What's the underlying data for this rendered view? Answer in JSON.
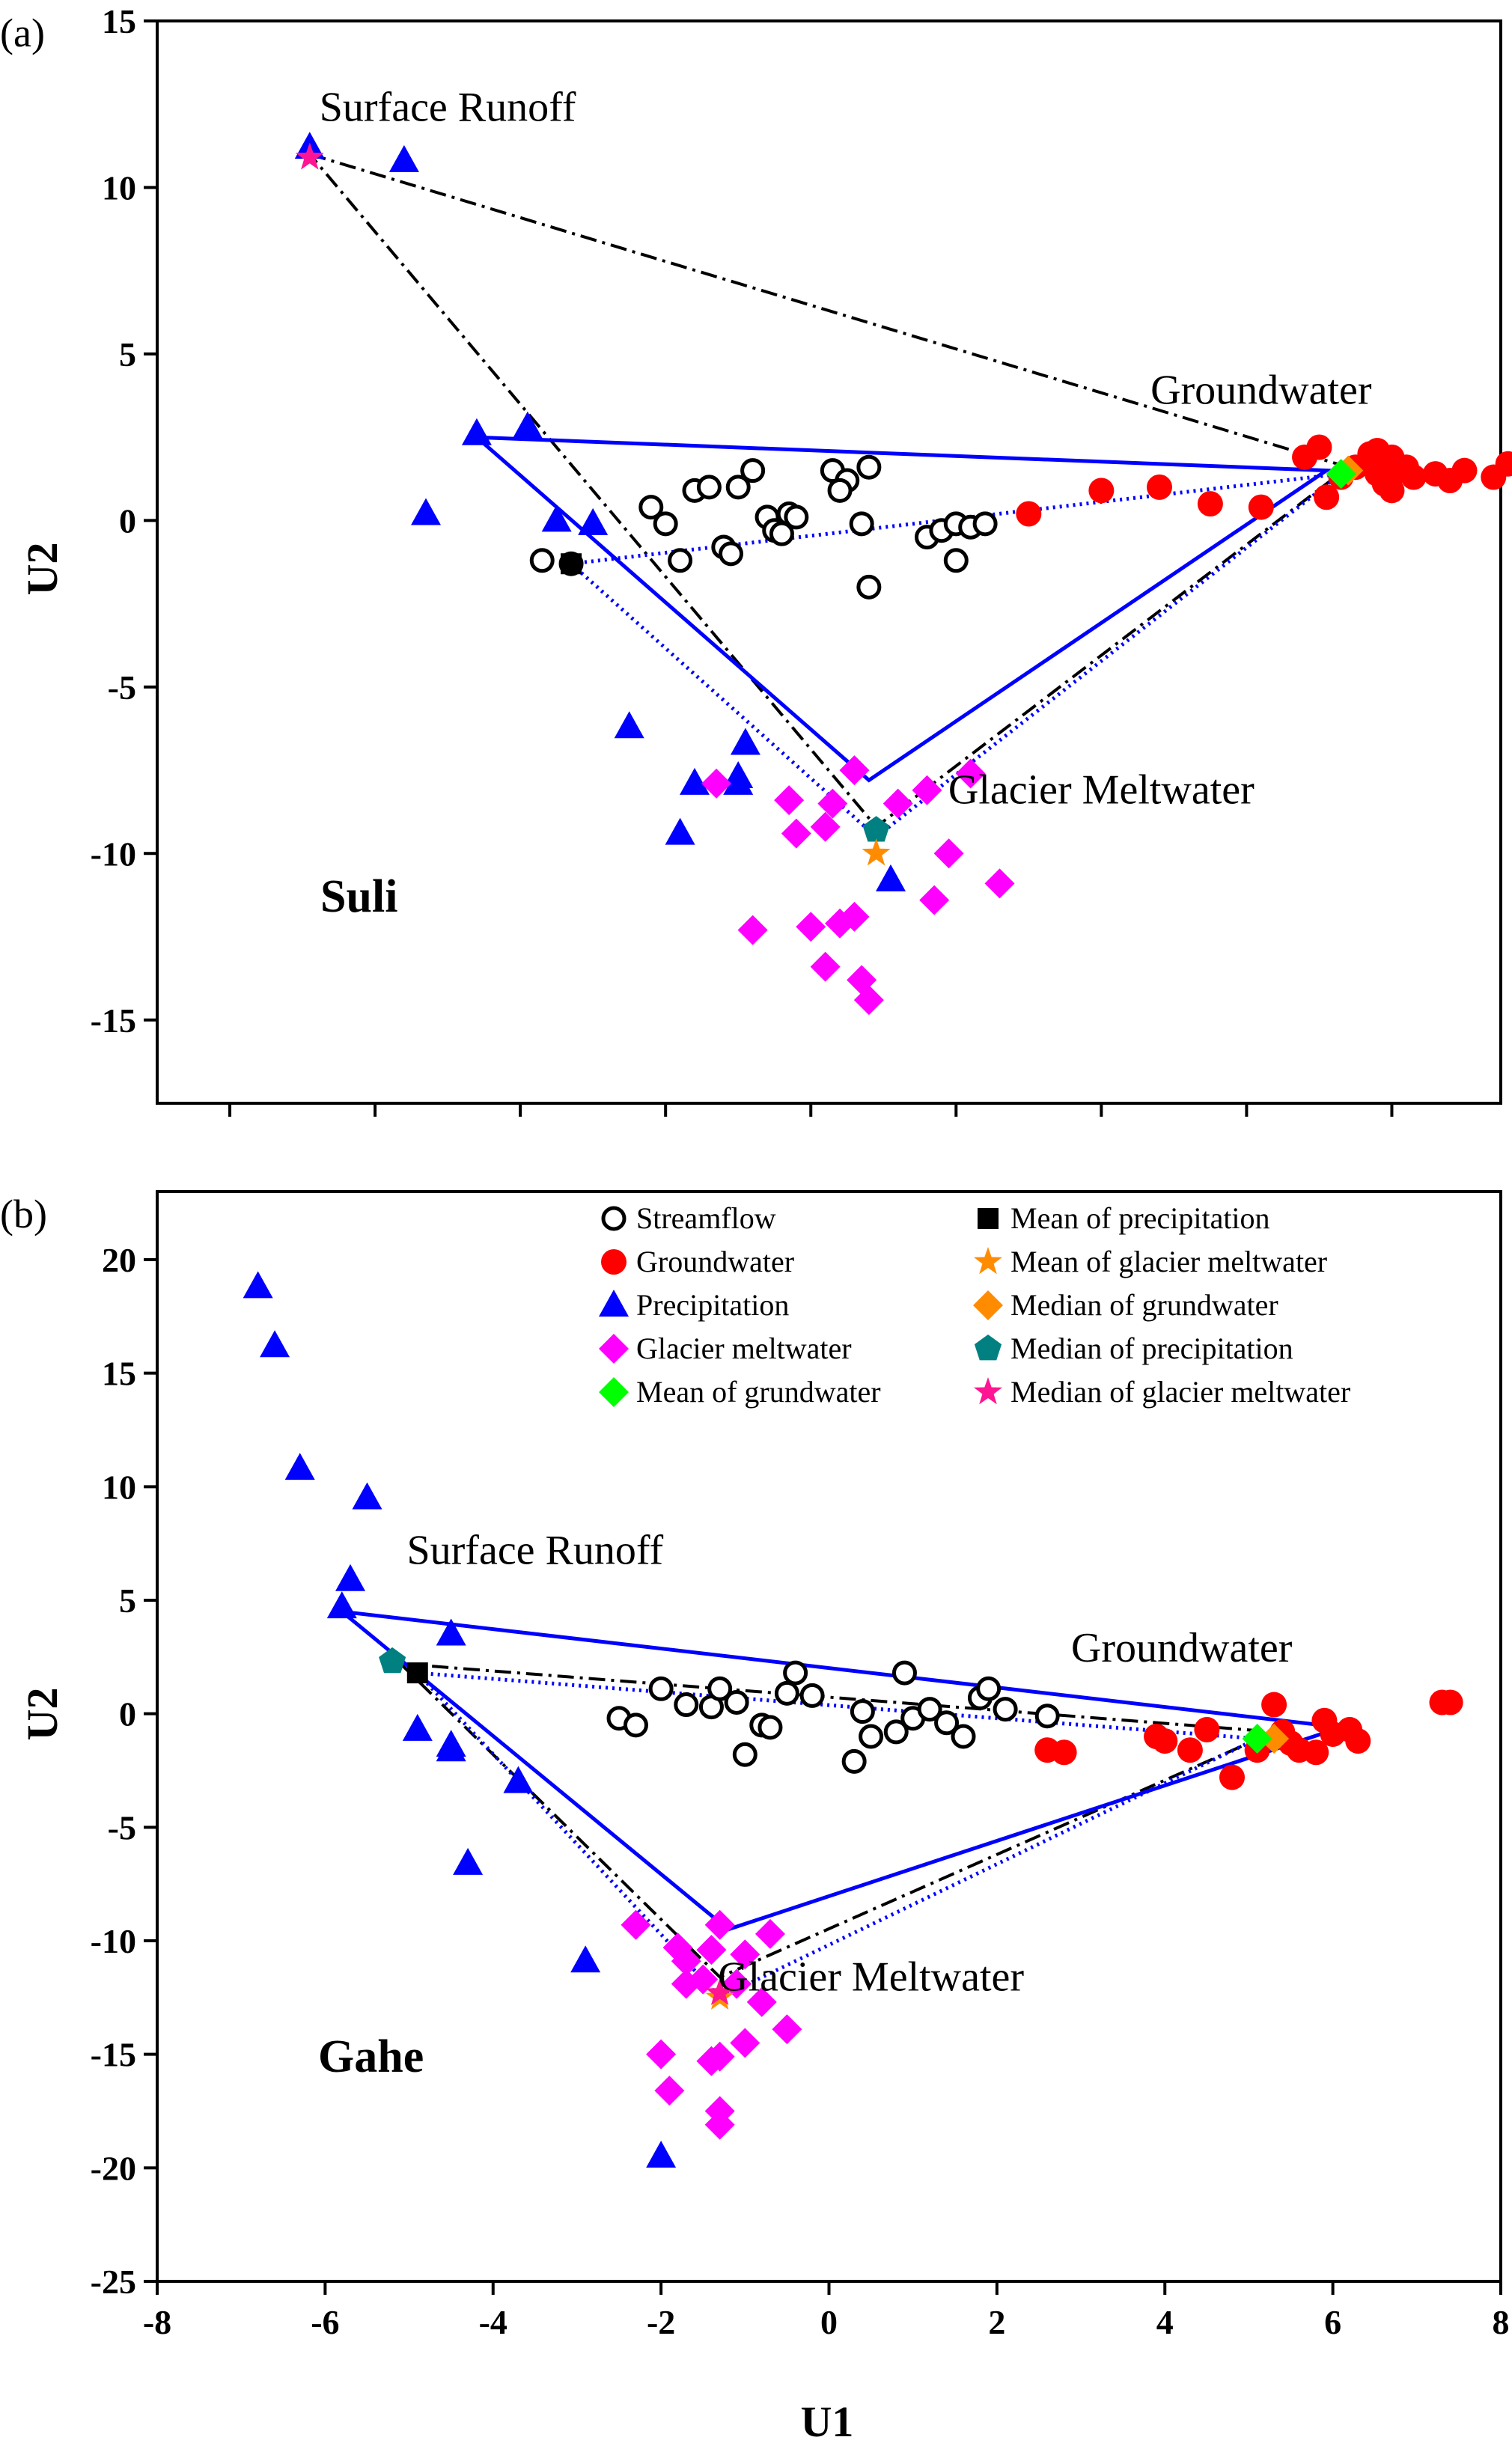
{
  "legend": [
    {
      "key": "streamflow",
      "label": "Streamflow",
      "marker": "circle-open",
      "color": "#000000"
    },
    {
      "key": "groundwater",
      "label": "Groundwater",
      "marker": "circle",
      "color": "#ff0000"
    },
    {
      "key": "precipitation",
      "label": "Precipitation",
      "marker": "triangle",
      "color": "#0000ff"
    },
    {
      "key": "glacier",
      "label": "Glacier meltwater",
      "marker": "diamond",
      "color": "#ff00ff"
    },
    {
      "key": "mean_gw",
      "label": "Mean of grundwater",
      "marker": "diamond",
      "color": "#00ff00"
    },
    {
      "key": "mean_precip",
      "label": "Mean of precipitation",
      "marker": "square",
      "color": "#000000"
    },
    {
      "key": "mean_glacier",
      "label": "Mean of glacier meltwater",
      "marker": "star",
      "color": "#ff8c00"
    },
    {
      "key": "median_gw",
      "label": "Median of grundwater",
      "marker": "diamond",
      "color": "#ff8c00"
    },
    {
      "key": "median_precip",
      "label": "Median of precipitation",
      "marker": "pentagon",
      "color": "#008080"
    },
    {
      "key": "median_glacier",
      "label": "Median of glacier meltwater",
      "marker": "star",
      "color": "#ff1493"
    }
  ],
  "chart_data": [
    {
      "type": "scatter",
      "panel": "(a)",
      "site_label": "Suli",
      "xlabel": "",
      "ylabel": "U2",
      "xlim": [
        -9,
        9.5
      ],
      "ylim": [
        -17.5,
        15
      ],
      "xticks": [],
      "yticks": [
        -15,
        -10,
        -5,
        0,
        5,
        10,
        15
      ],
      "annotations": [
        {
          "text": "Surface Runoff",
          "x": -5,
          "y": 12
        },
        {
          "text": "Groundwater",
          "x": 6.2,
          "y": 3.5
        },
        {
          "text": "Glacier Meltwater",
          "x": 4,
          "y": -8.5
        }
      ],
      "series": {
        "streamflow": [
          [
            -3.7,
            -1.2
          ],
          [
            -3.3,
            -1.3
          ],
          [
            -2.2,
            0.4
          ],
          [
            -2.0,
            -0.1
          ],
          [
            -1.8,
            -1.2
          ],
          [
            -1.6,
            0.9
          ],
          [
            -1.4,
            1.0
          ],
          [
            -1.2,
            -0.8
          ],
          [
            -1.0,
            1.0
          ],
          [
            -0.8,
            1.5
          ],
          [
            -0.6,
            0.1
          ],
          [
            -0.5,
            -0.3
          ],
          [
            -0.3,
            0.2
          ],
          [
            -0.2,
            0.1
          ],
          [
            0.3,
            1.5
          ],
          [
            0.5,
            1.2
          ],
          [
            0.8,
            1.6
          ],
          [
            0.7,
            -0.1
          ],
          [
            0.8,
            -2.0
          ],
          [
            1.6,
            -0.5
          ],
          [
            1.8,
            -0.3
          ],
          [
            2.0,
            -0.1
          ],
          [
            2.0,
            -1.2
          ],
          [
            2.2,
            -0.2
          ],
          [
            2.4,
            -0.1
          ],
          [
            -1.1,
            -1.0
          ],
          [
            -0.4,
            -0.4
          ],
          [
            0.4,
            0.9
          ]
        ],
        "groundwater": [
          [
            3.0,
            0.2
          ],
          [
            4.0,
            0.9
          ],
          [
            4.8,
            1.0
          ],
          [
            5.5,
            0.5
          ],
          [
            6.2,
            0.4
          ],
          [
            6.8,
            1.9
          ],
          [
            7.0,
            2.2
          ],
          [
            7.1,
            0.7
          ],
          [
            7.3,
            1.3
          ],
          [
            7.5,
            1.6
          ],
          [
            7.7,
            2.0
          ],
          [
            7.8,
            1.4
          ],
          [
            7.9,
            1.1
          ],
          [
            8.0,
            0.9
          ],
          [
            8.1,
            1.5
          ],
          [
            8.2,
            1.6
          ],
          [
            8.3,
            1.3
          ],
          [
            8.6,
            1.4
          ],
          [
            8.8,
            1.2
          ],
          [
            9.0,
            1.5
          ],
          [
            9.4,
            1.3
          ],
          [
            9.6,
            1.7
          ],
          [
            7.8,
            2.1
          ],
          [
            8.0,
            1.9
          ]
        ],
        "precipitation": [
          [
            -6.9,
            11.2
          ],
          [
            -5.6,
            10.8
          ],
          [
            -4.6,
            2.6
          ],
          [
            -3.9,
            2.8
          ],
          [
            -5.3,
            0.2
          ],
          [
            -3.5,
            0.0
          ],
          [
            -3.0,
            -0.1
          ],
          [
            -2.5,
            -6.2
          ],
          [
            -1.8,
            -9.4
          ],
          [
            -1.6,
            -7.9
          ],
          [
            -1.0,
            -7.7
          ],
          [
            -1.0,
            -7.9
          ],
          [
            -0.9,
            -6.7
          ],
          [
            1.1,
            -10.8
          ]
        ],
        "glacier": [
          [
            -1.3,
            -7.9
          ],
          [
            -0.3,
            -8.4
          ],
          [
            -0.2,
            -9.4
          ],
          [
            0.0,
            -12.2
          ],
          [
            0.2,
            -9.2
          ],
          [
            0.3,
            -8.5
          ],
          [
            0.6,
            -7.5
          ],
          [
            0.6,
            -11.9
          ],
          [
            0.7,
            -13.8
          ],
          [
            0.8,
            -14.4
          ],
          [
            1.2,
            -8.5
          ],
          [
            1.6,
            -8.1
          ],
          [
            1.7,
            -11.4
          ],
          [
            1.9,
            -10.0
          ],
          [
            2.2,
            -7.6
          ],
          [
            2.6,
            -10.9
          ],
          [
            -0.8,
            -12.3
          ],
          [
            0.2,
            -13.4
          ],
          [
            0.4,
            -12.1
          ]
        ],
        "mean_gw": [
          [
            7.3,
            1.4
          ]
        ],
        "mean_precip": [
          [
            -3.3,
            -1.3
          ]
        ],
        "mean_glacier": [
          [
            0.9,
            -10.0
          ]
        ],
        "median_gw": [
          [
            7.4,
            1.5
          ]
        ],
        "median_precip": [
          [
            0.9,
            -9.3
          ]
        ],
        "median_glacier": [
          [
            -6.9,
            10.9
          ]
        ]
      },
      "triangles": {
        "solid_blue": [
          [
            -4.6,
            2.5
          ],
          [
            7.1,
            1.5
          ],
          [
            0.8,
            -7.8
          ]
        ],
        "dotted_blue": [
          [
            -3.3,
            -1.3
          ],
          [
            7.3,
            1.4
          ],
          [
            0.9,
            -9.5
          ]
        ],
        "dashdot_black": [
          [
            -6.9,
            11.0
          ],
          [
            7.4,
            1.6
          ],
          [
            0.9,
            -9.2
          ]
        ]
      }
    },
    {
      "type": "scatter",
      "panel": "(b)",
      "site_label": "Gahe",
      "xlabel": "U1",
      "ylabel": "U2",
      "xlim": [
        -8,
        8
      ],
      "ylim": [
        -25,
        23
      ],
      "xticks": [
        -8,
        -6,
        -4,
        -2,
        0,
        2,
        4,
        6,
        8
      ],
      "yticks": [
        -25,
        -20,
        -15,
        -10,
        -5,
        0,
        5,
        10,
        15,
        20
      ],
      "annotations": [
        {
          "text": "Surface Runoff",
          "x": -3.5,
          "y": 6.6
        },
        {
          "text": "Groundwater",
          "x": 4.2,
          "y": 2.3
        },
        {
          "text": "Glacier Meltwater",
          "x": 0.5,
          "y": -12.2
        }
      ],
      "series": {
        "streamflow": [
          [
            -2.5,
            -0.2
          ],
          [
            -2.3,
            -0.5
          ],
          [
            -2.0,
            1.1
          ],
          [
            -1.7,
            0.4
          ],
          [
            -1.4,
            0.3
          ],
          [
            -1.3,
            1.1
          ],
          [
            -1.1,
            0.5
          ],
          [
            -1.0,
            -1.8
          ],
          [
            -0.8,
            -0.5
          ],
          [
            -0.7,
            -0.6
          ],
          [
            -0.5,
            0.9
          ],
          [
            -0.4,
            1.8
          ],
          [
            -0.2,
            0.8
          ],
          [
            0.3,
            -2.1
          ],
          [
            0.4,
            0.1
          ],
          [
            0.5,
            -1.0
          ],
          [
            0.8,
            -0.8
          ],
          [
            0.9,
            1.8
          ],
          [
            1.0,
            -0.2
          ],
          [
            1.2,
            0.2
          ],
          [
            1.4,
            -0.4
          ],
          [
            1.6,
            -1.0
          ],
          [
            1.8,
            0.7
          ],
          [
            1.9,
            1.1
          ],
          [
            2.1,
            0.2
          ],
          [
            2.6,
            -0.1
          ]
        ],
        "groundwater": [
          [
            2.6,
            -1.6
          ],
          [
            2.8,
            -1.7
          ],
          [
            3.9,
            -1.0
          ],
          [
            4.0,
            -1.2
          ],
          [
            4.3,
            -1.6
          ],
          [
            4.5,
            -0.7
          ],
          [
            4.8,
            -2.8
          ],
          [
            5.1,
            -1.6
          ],
          [
            5.3,
            0.4
          ],
          [
            5.4,
            -0.8
          ],
          [
            5.5,
            -1.3
          ],
          [
            5.6,
            -1.6
          ],
          [
            5.8,
            -1.7
          ],
          [
            5.9,
            -0.3
          ],
          [
            6.0,
            -0.9
          ],
          [
            6.2,
            -0.7
          ],
          [
            6.3,
            -1.2
          ],
          [
            7.3,
            0.5
          ],
          [
            7.4,
            0.5
          ]
        ],
        "precipitation": [
          [
            -6.8,
            18.8
          ],
          [
            -6.6,
            16.2
          ],
          [
            -6.3,
            10.8
          ],
          [
            -5.5,
            9.5
          ],
          [
            -5.7,
            5.9
          ],
          [
            -5.8,
            4.7
          ],
          [
            -4.5,
            3.5
          ],
          [
            -4.9,
            -0.7
          ],
          [
            -4.5,
            -1.4
          ],
          [
            -4.5,
            -1.6
          ],
          [
            -3.7,
            -3.0
          ],
          [
            -4.3,
            -6.6
          ],
          [
            -2.9,
            -10.9
          ],
          [
            -2.0,
            -19.5
          ]
        ],
        "glacier": [
          [
            -2.3,
            -9.3
          ],
          [
            -1.8,
            -10.3
          ],
          [
            -1.7,
            -10.9
          ],
          [
            -1.7,
            -11.9
          ],
          [
            -1.5,
            -11.7
          ],
          [
            -1.4,
            -10.4
          ],
          [
            -1.3,
            -9.3
          ],
          [
            -1.1,
            -11.9
          ],
          [
            -1.0,
            -10.6
          ],
          [
            -0.7,
            -9.7
          ],
          [
            -0.8,
            -12.7
          ],
          [
            -1.0,
            -14.5
          ],
          [
            -1.4,
            -15.3
          ],
          [
            -1.3,
            -15.1
          ],
          [
            -2.0,
            -15.0
          ],
          [
            -1.9,
            -16.6
          ],
          [
            -1.3,
            -17.5
          ],
          [
            -1.3,
            -18.1
          ],
          [
            -0.5,
            -13.9
          ]
        ],
        "mean_gw": [
          [
            5.1,
            -1.1
          ]
        ],
        "mean_precip": [
          [
            -4.9,
            1.8
          ]
        ],
        "mean_glacier": [
          [
            -1.3,
            -12.5
          ]
        ],
        "median_gw": [
          [
            5.3,
            -1.1
          ]
        ],
        "median_precip": [
          [
            -5.2,
            2.3
          ]
        ],
        "median_glacier": [
          [
            -1.3,
            -12.3
          ]
        ]
      },
      "triangles": {
        "solid_blue": [
          [
            -5.8,
            4.5
          ],
          [
            6.1,
            -0.6
          ],
          [
            -1.2,
            -9.5
          ]
        ],
        "dotted_blue": [
          [
            -4.9,
            1.8
          ],
          [
            5.1,
            -1.1
          ],
          [
            -1.3,
            -12.5
          ]
        ],
        "dashdot_black": [
          [
            -5.1,
            2.2
          ],
          [
            5.3,
            -0.8
          ],
          [
            -1.3,
            -11.6
          ]
        ]
      }
    }
  ]
}
